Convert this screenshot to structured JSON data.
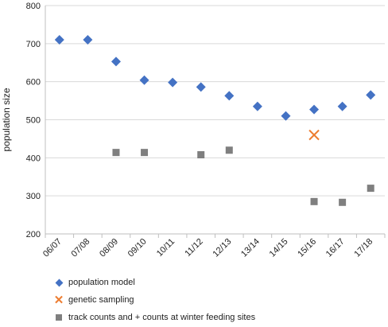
{
  "chart_data": {
    "type": "scatter",
    "categories": [
      "06/07",
      "07/08",
      "08/09",
      "09/10",
      "10/11",
      "11/12",
      "12/13",
      "13/14",
      "14/15",
      "15/16",
      "16/17",
      "17/18"
    ],
    "ylabel": "population size",
    "ylim": [
      200,
      800
    ],
    "yticks": [
      200,
      300,
      400,
      500,
      600,
      700,
      800
    ],
    "grid": true,
    "legend_position": "bottom",
    "series": [
      {
        "name": "population model",
        "marker": "diamond",
        "color": "#4472C4",
        "points": [
          {
            "x": 0.0,
            "y": 710
          },
          {
            "x": 1.0,
            "y": 710
          },
          {
            "x": 2.0,
            "y": 653
          },
          {
            "x": 3.0,
            "y": 604
          },
          {
            "x": 4.0,
            "y": 598
          },
          {
            "x": 5.0,
            "y": 586
          },
          {
            "x": 6.0,
            "y": 563
          },
          {
            "x": 7.0,
            "y": 535
          },
          {
            "x": 8.0,
            "y": 510
          },
          {
            "x": 9.0,
            "y": 527
          },
          {
            "x": 10.0,
            "y": 535
          },
          {
            "x": 11.0,
            "y": 565
          }
        ]
      },
      {
        "name": "genetic sampling",
        "marker": "x",
        "color": "#ED7D31",
        "points": [
          {
            "x": 9.0,
            "y": 460
          }
        ]
      },
      {
        "name": "track counts and  + counts at winter feeding sites",
        "marker": "square",
        "color": "#7F7F7F",
        "points": [
          {
            "x": 2.0,
            "y": 414
          },
          {
            "x": 3.0,
            "y": 414
          },
          {
            "x": 5.0,
            "y": 408
          },
          {
            "x": 6.0,
            "y": 420
          },
          {
            "x": 9.0,
            "y": 285
          },
          {
            "x": 10.0,
            "y": 283
          },
          {
            "x": 11.0,
            "y": 320
          }
        ]
      }
    ]
  }
}
